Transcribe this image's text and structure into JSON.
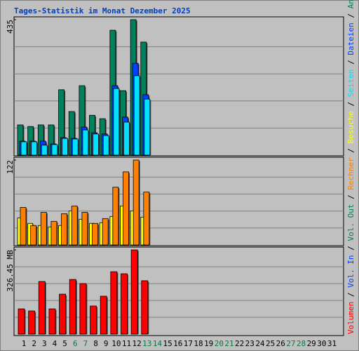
{
  "title": "Tages-Statistik im Monat Dezember 2025",
  "categories": [
    "1",
    "2",
    "3",
    "4",
    "5",
    "6",
    "7",
    "8",
    "9",
    "10",
    "11",
    "12",
    "13",
    "14",
    "15",
    "16",
    "17",
    "18",
    "19",
    "20",
    "21",
    "22",
    "23",
    "24",
    "25",
    "26",
    "27",
    "28",
    "29",
    "30",
    "31"
  ],
  "category_colors": [
    "#000000",
    "#000000",
    "#000000",
    "#000000",
    "#000000",
    "#008040",
    "#008040",
    "#000000",
    "#000000",
    "#000000",
    "#000000",
    "#000000",
    "#008040",
    "#008040",
    "#000000",
    "#000000",
    "#000000",
    "#000000",
    "#000000",
    "#008040",
    "#008040",
    "#000000",
    "#000000",
    "#000000",
    "#000000",
    "#000000",
    "#008040",
    "#008040",
    "#000000",
    "#000000",
    "#000000"
  ],
  "legend_separator": " / ",
  "chart_data": [
    {
      "type": "bar",
      "ylim": [
        0,
        435
      ],
      "yticks": [
        435
      ],
      "series": [
        {
          "name": "Anfragen",
          "color": "#00805c",
          "values": [
            97,
            92,
            97,
            97,
            210,
            140,
            223,
            128,
            117,
            401,
            207,
            435,
            363
          ]
        },
        {
          "name": "Dateien",
          "color": "#0040ff",
          "values": [
            45,
            45,
            45,
            36,
            56,
            54,
            90,
            72,
            68,
            223,
            122,
            295,
            194
          ]
        },
        {
          "name": "Seiten",
          "color": "#00e0ff",
          "values": [
            43,
            43,
            32,
            34,
            54,
            52,
            81,
            68,
            63,
            214,
            106,
            255,
            180
          ]
        }
      ]
    },
    {
      "type": "bar",
      "ylim": [
        0,
        122
      ],
      "yticks": [
        122
      ],
      "series": [
        {
          "name": "Besuche",
          "color": "#ffff00",
          "values": [
            39,
            31,
            28,
            26,
            28,
            49,
            37,
            31,
            32,
            41,
            56,
            49,
            40
          ]
        },
        {
          "name": "Rechner",
          "color": "#ff8000",
          "values": [
            54,
            28,
            47,
            34,
            45,
            56,
            47,
            31,
            38,
            83,
            105,
            122,
            76
          ]
        }
      ]
    },
    {
      "type": "bar",
      "ylim": [
        0,
        326.45
      ],
      "yticks": [
        {
          "value": 326.45,
          "label": "326.45 MB"
        }
      ],
      "series": [
        {
          "name": "Volumen",
          "color": "#ff0000",
          "values": [
            97.9,
            89.8,
            204,
            97.9,
            155,
            212,
            196,
            109,
            147,
            242,
            234,
            326.45,
            207
          ]
        }
      ],
      "legend_extra": [
        {
          "name": "Vol. In",
          "color": "#0040ff"
        },
        {
          "name": "Vol. Out",
          "color": "#00805c"
        }
      ]
    }
  ]
}
